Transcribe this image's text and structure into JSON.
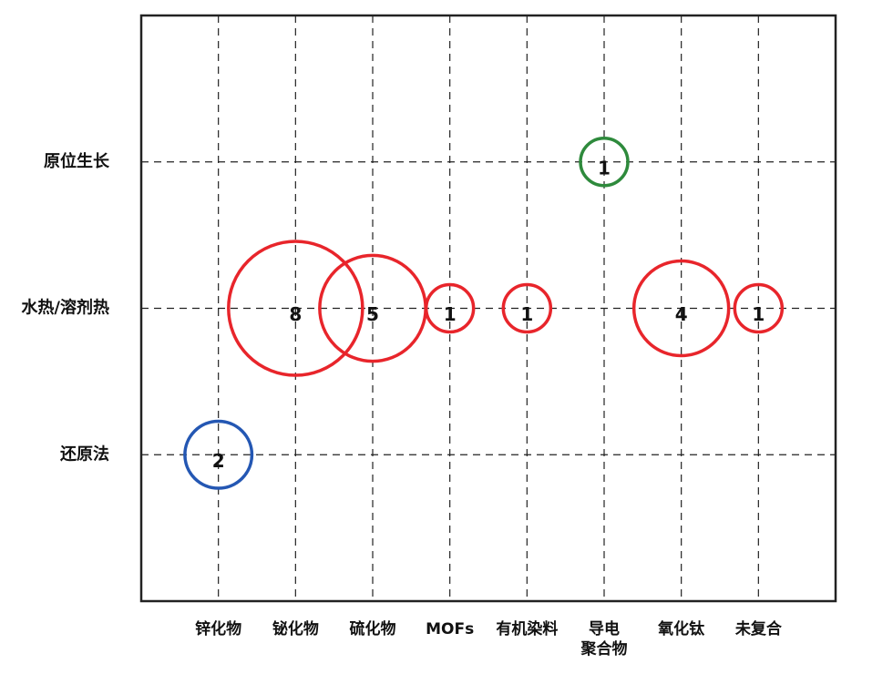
{
  "chart_data": {
    "type": "bubble",
    "categories": [
      "锌化物",
      "铋化物",
      "硫化物",
      "MOFs",
      "有机染料",
      "导电\n聚合物",
      "氧化钛",
      "未复合"
    ],
    "y_categories": [
      "原位生长",
      "水热/溶剂热",
      "还原法"
    ],
    "points": [
      {
        "x": "锌化物",
        "y": "还原法",
        "value": 2,
        "color": "#2457b3"
      },
      {
        "x": "铋化物",
        "y": "水热/溶剂热",
        "value": 8,
        "color": "#e8252b"
      },
      {
        "x": "硫化物",
        "y": "水热/溶剂热",
        "value": 5,
        "color": "#e8252b"
      },
      {
        "x": "MOFs",
        "y": "水热/溶剂热",
        "value": 1,
        "color": "#e8252b"
      },
      {
        "x": "有机染料",
        "y": "水热/溶剂热",
        "value": 1,
        "color": "#e8252b"
      },
      {
        "x": "导电\n聚合物",
        "y": "原位生长",
        "value": 1,
        "color": "#2e8a3c"
      },
      {
        "x": "氧化钛",
        "y": "水热/溶剂热",
        "value": 4,
        "color": "#e8252b"
      },
      {
        "x": "未复合",
        "y": "水热/溶剂热",
        "value": 1,
        "color": "#e8252b"
      }
    ],
    "grid": true
  }
}
